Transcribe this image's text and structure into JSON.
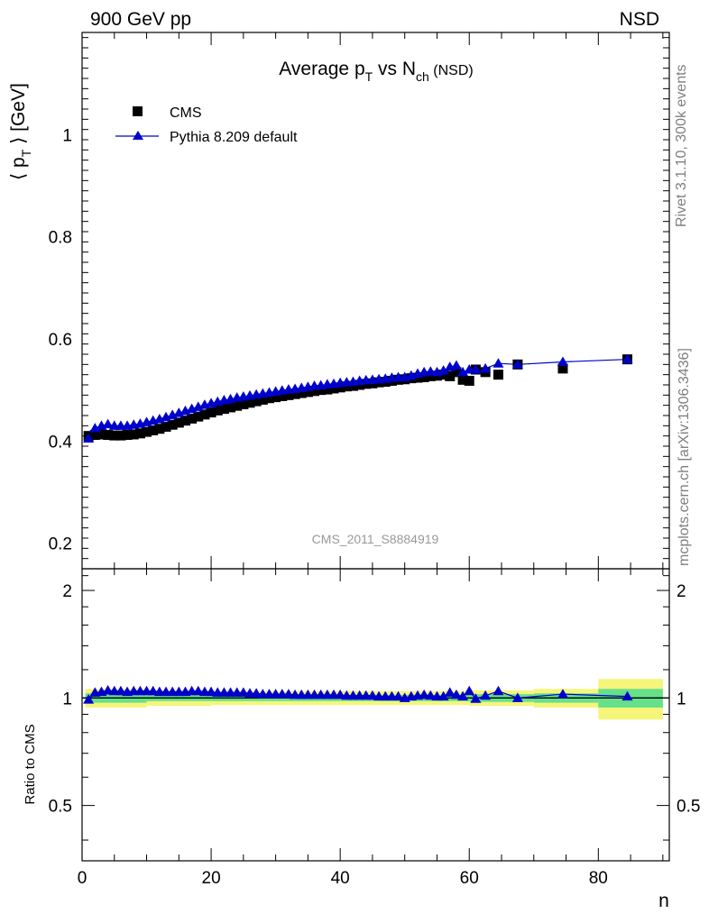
{
  "header": {
    "left": "900 GeV pp",
    "right": "NSD"
  },
  "side_labels": {
    "rivet": "Rivet 3.1.10,  300k events",
    "mcplots": "mcplots.cern.ch [arXiv:1306.3436]"
  },
  "chart_data": [
    {
      "type": "scatter",
      "panel": "main",
      "title_parts": {
        "base": "Average p",
        "sub1": "T",
        "mid": " vs N",
        "sub2": "ch",
        "suffix": " (NSD)"
      },
      "ylabel_parts": {
        "open": "⟨ p",
        "sub": "T",
        "close": " ⟩ [GeV]"
      },
      "watermark": "CMS_2011_S8884919",
      "xlim": [
        0,
        91
      ],
      "ylim": [
        0.15,
        1.2
      ],
      "x_ticks": [
        "0",
        "20",
        "40",
        "60",
        "80"
      ],
      "y_ticks": [
        "0.2",
        "0.4",
        "0.6",
        "0.8",
        "1"
      ],
      "legend_position": "top-left",
      "colors": {
        "data": "#000000",
        "mc": "#0000cc"
      },
      "series": [
        {
          "name": "CMS",
          "marker": "square",
          "x": [
            1,
            2,
            3,
            4,
            5,
            6,
            7,
            8,
            9,
            10,
            11,
            12,
            13,
            14,
            15,
            16,
            17,
            18,
            19,
            20,
            21,
            22,
            23,
            24,
            25,
            26,
            27,
            28,
            29,
            30,
            31,
            32,
            33,
            34,
            35,
            36,
            37,
            38,
            39,
            40,
            41,
            42,
            43,
            44,
            45,
            46,
            47,
            48,
            49,
            50,
            51,
            52,
            53,
            54,
            55,
            56,
            57,
            58,
            59,
            60,
            61,
            62.5,
            64.5,
            67.5,
            74.5,
            84.5
          ],
          "values": [
            0.41,
            0.412,
            0.413,
            0.412,
            0.411,
            0.411,
            0.412,
            0.413,
            0.415,
            0.418,
            0.421,
            0.424,
            0.428,
            0.432,
            0.436,
            0.44,
            0.444,
            0.448,
            0.452,
            0.456,
            0.46,
            0.463,
            0.466,
            0.469,
            0.472,
            0.475,
            0.478,
            0.481,
            0.484,
            0.486,
            0.488,
            0.49,
            0.492,
            0.494,
            0.496,
            0.498,
            0.5,
            0.501,
            0.503,
            0.505,
            0.507,
            0.508,
            0.51,
            0.512,
            0.513,
            0.515,
            0.516,
            0.518,
            0.52,
            0.521,
            0.523,
            0.524,
            0.525,
            0.527,
            0.528,
            0.53,
            0.527,
            0.535,
            0.52,
            0.518,
            0.54,
            0.535,
            0.53,
            0.55,
            0.542,
            0.56
          ]
        },
        {
          "name": "Pythia 8.209 default",
          "marker": "triangle",
          "x": [
            1,
            2,
            3,
            4,
            5,
            6,
            7,
            8,
            9,
            10,
            11,
            12,
            13,
            14,
            15,
            16,
            17,
            18,
            19,
            20,
            21,
            22,
            23,
            24,
            25,
            26,
            27,
            28,
            29,
            30,
            31,
            32,
            33,
            34,
            35,
            36,
            37,
            38,
            39,
            40,
            41,
            42,
            43,
            44,
            45,
            46,
            47,
            48,
            49,
            50,
            51,
            52,
            53,
            54,
            55,
            56,
            57,
            58,
            59,
            60,
            61,
            62.5,
            64.5,
            67.5,
            74.5,
            84.5
          ],
          "values": [
            0.405,
            0.425,
            0.43,
            0.433,
            0.43,
            0.43,
            0.43,
            0.432,
            0.434,
            0.437,
            0.44,
            0.443,
            0.447,
            0.451,
            0.455,
            0.459,
            0.463,
            0.467,
            0.471,
            0.474,
            0.477,
            0.48,
            0.482,
            0.485,
            0.487,
            0.489,
            0.491,
            0.493,
            0.495,
            0.497,
            0.499,
            0.501,
            0.502,
            0.504,
            0.506,
            0.508,
            0.509,
            0.511,
            0.512,
            0.514,
            0.515,
            0.516,
            0.518,
            0.519,
            0.52,
            0.521,
            0.522,
            0.524,
            0.525,
            0.525,
            0.528,
            0.532,
            0.535,
            0.536,
            0.535,
            0.538,
            0.545,
            0.548,
            0.535,
            0.54,
            0.54,
            0.542,
            0.552,
            0.55,
            0.555,
            0.56
          ]
        }
      ]
    },
    {
      "type": "line",
      "panel": "ratio",
      "ylabel": "Ratio to CMS",
      "xlabel": "n",
      "xlim": [
        0,
        91
      ],
      "ylim": [
        0.35,
        2.3
      ],
      "x_ticks": [
        "0",
        "20",
        "40",
        "60",
        "80"
      ],
      "y_ticks": [
        "0.5",
        "1",
        "2"
      ],
      "colors": {
        "band_stat": "#66e08a",
        "band_total": "#f5f57a",
        "mc": "#0000cc",
        "reference": "#000000"
      },
      "uncertainty_band": {
        "x_edges": [
          0.5,
          10,
          20,
          30,
          40,
          50,
          60,
          70,
          80,
          90
        ],
        "inner_half_width": [
          0.03,
          0.02,
          0.02,
          0.02,
          0.02,
          0.02,
          0.025,
          0.03,
          0.06
        ],
        "outer_half_width": [
          0.06,
          0.05,
          0.045,
          0.045,
          0.045,
          0.045,
          0.05,
          0.06,
          0.13
        ]
      },
      "series": [
        {
          "name": "Pythia 8.209 default",
          "x": [
            1,
            2,
            3,
            4,
            5,
            6,
            7,
            8,
            9,
            10,
            11,
            12,
            13,
            14,
            15,
            16,
            17,
            18,
            19,
            20,
            21,
            22,
            23,
            24,
            25,
            26,
            27,
            28,
            29,
            30,
            31,
            32,
            33,
            34,
            35,
            36,
            37,
            38,
            39,
            40,
            41,
            42,
            43,
            44,
            45,
            46,
            47,
            48,
            49,
            50,
            51,
            52,
            53,
            54,
            55,
            56,
            57,
            58,
            59,
            60,
            61,
            62.5,
            64.5,
            67.5,
            74.5,
            84.5
          ],
          "values": [
            0.99,
            1.035,
            1.04,
            1.05,
            1.045,
            1.045,
            1.04,
            1.045,
            1.045,
            1.045,
            1.045,
            1.04,
            1.04,
            1.04,
            1.04,
            1.04,
            1.045,
            1.045,
            1.04,
            1.04,
            1.035,
            1.035,
            1.035,
            1.035,
            1.035,
            1.03,
            1.03,
            1.025,
            1.025,
            1.025,
            1.025,
            1.025,
            1.02,
            1.02,
            1.02,
            1.02,
            1.02,
            1.02,
            1.02,
            1.02,
            1.015,
            1.015,
            1.015,
            1.015,
            1.015,
            1.01,
            1.01,
            1.01,
            1.01,
            1.0,
            1.01,
            1.015,
            1.02,
            1.015,
            1.01,
            1.01,
            1.035,
            1.02,
            1.01,
            1.045,
            0.995,
            1.015,
            1.045,
            1.0,
            1.025,
            1.01
          ]
        }
      ]
    }
  ]
}
